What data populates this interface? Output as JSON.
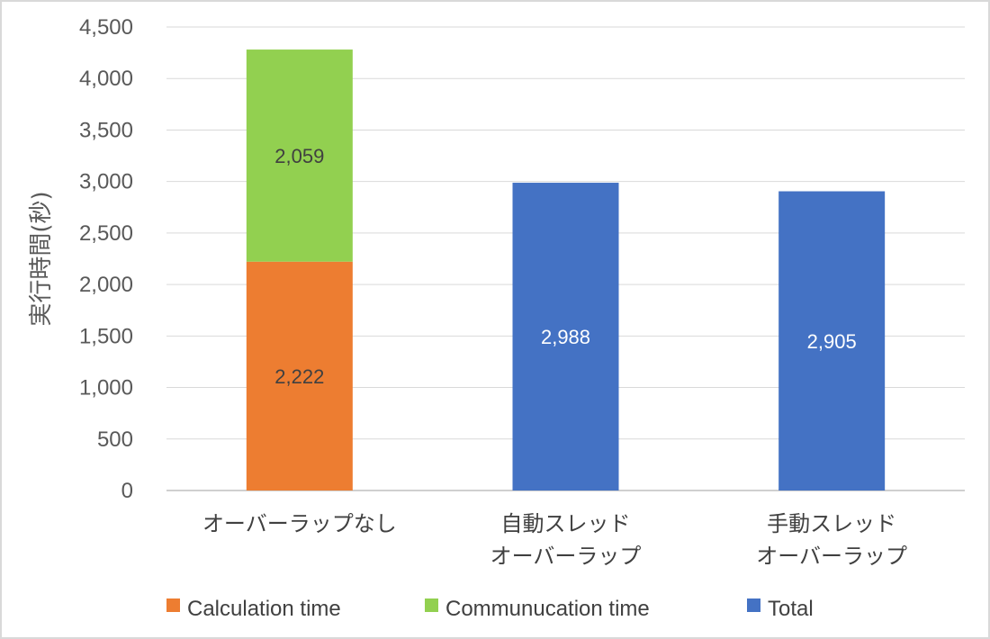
{
  "chart_data": {
    "type": "bar",
    "stacked": true,
    "categories": [
      [
        "オーバーラップなし"
      ],
      [
        "自動スレッド",
        "オーバーラップ"
      ],
      [
        "手動スレッド",
        "オーバーラップ"
      ]
    ],
    "series": [
      {
        "name": "Calculation time",
        "color": "#ed7d31",
        "values": [
          2222,
          null,
          null
        ],
        "label_color": "#404040"
      },
      {
        "name": "Communucation time",
        "color": "#92d050",
        "values": [
          2059,
          null,
          null
        ],
        "label_color": "#404040"
      },
      {
        "name": "Total",
        "color": "#4472c4",
        "values": [
          null,
          2988,
          2905
        ],
        "label_color": "#ffffff"
      }
    ],
    "ylabel": "実行時間(秒)",
    "ylim": [
      0,
      4500
    ],
    "yticks": [
      0,
      500,
      1000,
      1500,
      2000,
      2500,
      3000,
      3500,
      4000,
      4500
    ],
    "grid": true,
    "legend_position": "bottom"
  }
}
